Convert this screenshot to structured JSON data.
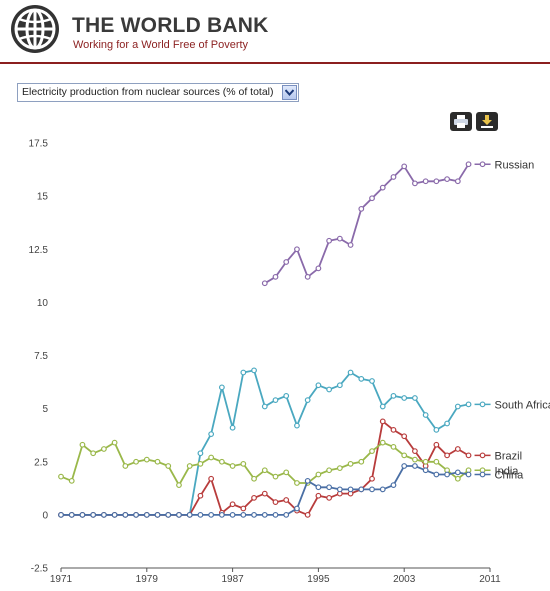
{
  "header": {
    "title": "THE WORLD BANK",
    "tagline": "Working for a World Free of Poverty",
    "brand_color": "#8b1f1f"
  },
  "selector": {
    "selected": "Electricity production from nuclear sources (% of total)",
    "arrow_icon": "chevron-down-icon"
  },
  "toolbar": {
    "print_icon": "print-icon",
    "download_icon": "download-icon"
  },
  "chart_data": {
    "type": "line",
    "title": "",
    "xlabel": "",
    "ylabel": "",
    "xlim": [
      1971,
      2011
    ],
    "ylim": [
      -2.5,
      17.5
    ],
    "xticks": [
      "1971",
      "1979",
      "1987",
      "1995",
      "2003",
      "2011"
    ],
    "yticks": [
      "-2.5",
      "0",
      "2.5",
      "5",
      "7.5",
      "10",
      "12.5",
      "15",
      "17.5"
    ],
    "grid": false,
    "legend": "line-end labels",
    "series": [
      {
        "name": "Russian",
        "color": "#8a6aaa",
        "x": [
          1990,
          1991,
          1992,
          1993,
          1994,
          1995,
          1996,
          1997,
          1998,
          1999,
          2000,
          2001,
          2002,
          2003,
          2004,
          2005,
          2006,
          2007,
          2008,
          2009
        ],
        "values": [
          10.9,
          11.2,
          11.9,
          12.5,
          11.2,
          11.6,
          12.9,
          13.0,
          12.7,
          14.4,
          14.9,
          15.4,
          15.9,
          16.4,
          15.6,
          15.7,
          15.7,
          15.8,
          15.7,
          16.5
        ]
      },
      {
        "name": "South Africa",
        "color": "#4aa8c0",
        "x": [
          1971,
          1972,
          1973,
          1974,
          1975,
          1976,
          1977,
          1978,
          1979,
          1980,
          1981,
          1982,
          1983,
          1984,
          1985,
          1986,
          1987,
          1988,
          1989,
          1990,
          1991,
          1992,
          1993,
          1994,
          1995,
          1996,
          1997,
          1998,
          1999,
          2000,
          2001,
          2002,
          2003,
          2004,
          2005,
          2006,
          2007,
          2008,
          2009
        ],
        "values": [
          0,
          0,
          0,
          0,
          0,
          0,
          0,
          0,
          0,
          0,
          0,
          0,
          0,
          2.9,
          3.8,
          6.0,
          4.1,
          6.7,
          6.8,
          5.1,
          5.4,
          5.6,
          4.2,
          5.4,
          6.1,
          5.9,
          6.1,
          6.7,
          6.4,
          6.3,
          5.1,
          5.6,
          5.5,
          5.5,
          4.7,
          4.0,
          4.3,
          5.1,
          5.2
        ]
      },
      {
        "name": "Brazil",
        "color": "#b83c3c",
        "x": [
          1971,
          1972,
          1973,
          1974,
          1975,
          1976,
          1977,
          1978,
          1979,
          1980,
          1981,
          1982,
          1983,
          1984,
          1985,
          1986,
          1987,
          1988,
          1989,
          1990,
          1991,
          1992,
          1993,
          1994,
          1995,
          1996,
          1997,
          1998,
          1999,
          2000,
          2001,
          2002,
          2003,
          2004,
          2005,
          2006,
          2007,
          2008,
          2009
        ],
        "values": [
          0,
          0,
          0,
          0,
          0,
          0,
          0,
          0,
          0,
          0,
          0,
          0,
          0,
          0.9,
          1.7,
          0.1,
          0.5,
          0.3,
          0.8,
          1.0,
          0.6,
          0.7,
          0.2,
          0.0,
          0.9,
          0.8,
          1.0,
          1.0,
          1.2,
          1.7,
          4.4,
          4.0,
          3.7,
          3.0,
          2.3,
          3.3,
          2.8,
          3.1,
          2.8
        ]
      },
      {
        "name": "India",
        "color": "#9ab84a",
        "x": [
          1971,
          1972,
          1973,
          1974,
          1975,
          1976,
          1977,
          1978,
          1979,
          1980,
          1981,
          1982,
          1983,
          1984,
          1985,
          1986,
          1987,
          1988,
          1989,
          1990,
          1991,
          1992,
          1993,
          1994,
          1995,
          1996,
          1997,
          1998,
          1999,
          2000,
          2001,
          2002,
          2003,
          2004,
          2005,
          2006,
          2007,
          2008,
          2009
        ],
        "values": [
          1.8,
          1.6,
          3.3,
          2.9,
          3.1,
          3.4,
          2.3,
          2.5,
          2.6,
          2.5,
          2.3,
          1.4,
          2.3,
          2.4,
          2.7,
          2.5,
          2.3,
          2.4,
          1.7,
          2.1,
          1.8,
          2.0,
          1.5,
          1.5,
          1.9,
          2.1,
          2.2,
          2.4,
          2.5,
          3.0,
          3.4,
          3.2,
          2.8,
          2.6,
          2.5,
          2.5,
          2.1,
          1.7,
          2.1
        ]
      },
      {
        "name": "China",
        "color": "#4a6fa5",
        "x": [
          1971,
          1972,
          1973,
          1974,
          1975,
          1976,
          1977,
          1978,
          1979,
          1980,
          1981,
          1982,
          1983,
          1984,
          1985,
          1986,
          1987,
          1988,
          1989,
          1990,
          1991,
          1992,
          1993,
          1994,
          1995,
          1996,
          1997,
          1998,
          1999,
          2000,
          2001,
          2002,
          2003,
          2004,
          2005,
          2006,
          2007,
          2008,
          2009
        ],
        "values": [
          0,
          0,
          0,
          0,
          0,
          0,
          0,
          0,
          0,
          0,
          0,
          0,
          0,
          0,
          0,
          0,
          0,
          0,
          0,
          0,
          0,
          0,
          0.3,
          1.6,
          1.3,
          1.3,
          1.2,
          1.2,
          1.2,
          1.2,
          1.2,
          1.4,
          2.3,
          2.3,
          2.1,
          1.9,
          1.9,
          2.0,
          1.9
        ]
      }
    ]
  }
}
